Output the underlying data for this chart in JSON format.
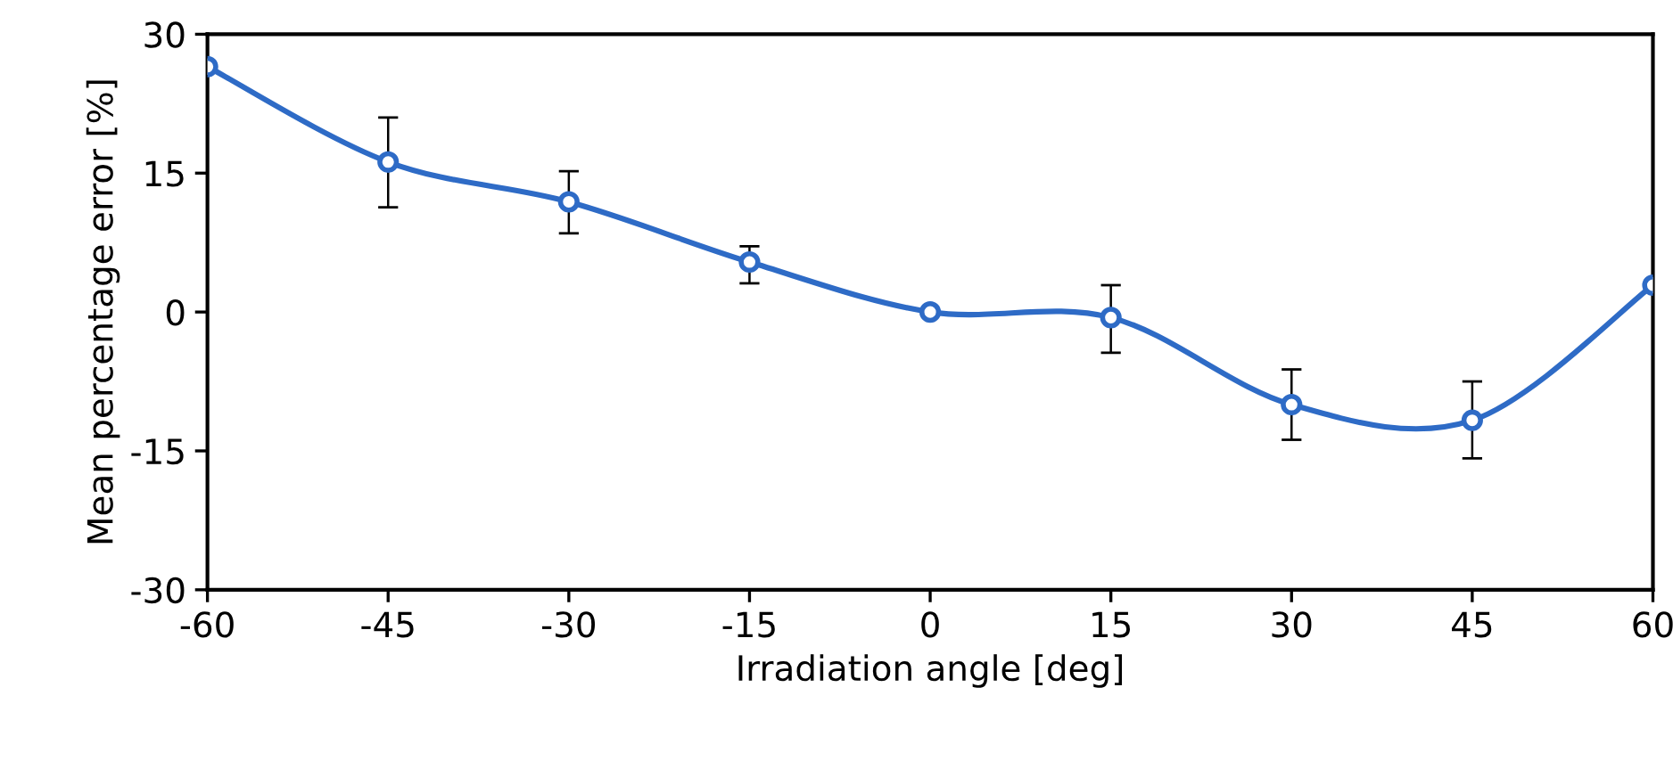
{
  "chart_data": {
    "type": "line",
    "xlabel": "Irradiation angle [deg]",
    "ylabel": "Mean percentage error [%]",
    "x": [
      -60,
      -45,
      -30,
      -15,
      0,
      15,
      30,
      45,
      60
    ],
    "series": [
      {
        "color": "#2e6bc6",
        "values": [
          26.5,
          16.2,
          11.9,
          5.4,
          0,
          -0.6,
          -10,
          -11.7,
          2.9
        ],
        "errors": [
          null,
          [
            11.3,
            21.0
          ],
          [
            8.5,
            15.2
          ],
          [
            3.1,
            7.1
          ],
          null,
          [
            -4.4,
            2.9
          ],
          [
            -13.8,
            -6.2
          ],
          [
            -15.8,
            -7.5
          ],
          null
        ]
      }
    ],
    "xlim": [
      -60,
      60
    ],
    "xticks": [
      -60,
      -45,
      -30,
      -15,
      0,
      15,
      30,
      45,
      60
    ],
    "ylim": [
      -30,
      30
    ],
    "yticks": [
      -30,
      -15,
      0,
      15,
      30
    ],
    "marker": "circle",
    "line_style": "solid",
    "grid": false,
    "legend": false
  }
}
